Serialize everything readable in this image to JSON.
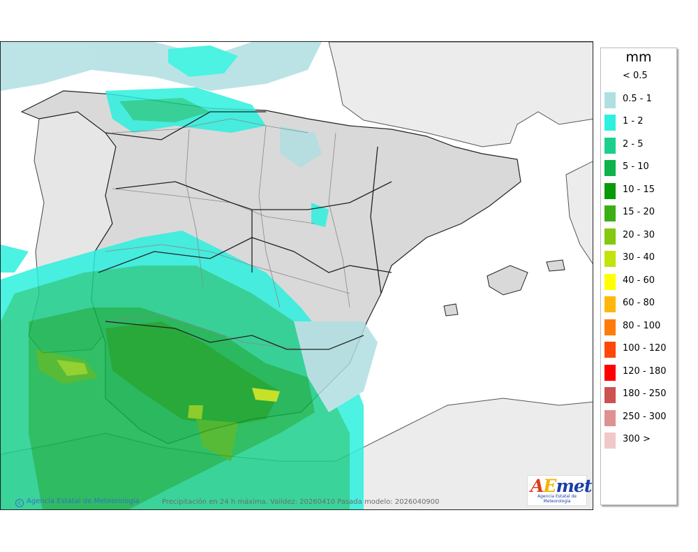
{
  "legend": {
    "unit": "mm",
    "items": [
      {
        "label": "< 0.5",
        "color": ""
      },
      {
        "label": "0.5 - 1",
        "color": "#b0dfe2"
      },
      {
        "label": "1 - 2",
        "color": "#2df0de"
      },
      {
        "label": "2 - 5",
        "color": "#1ccf8c"
      },
      {
        "label": "5 - 10",
        "color": "#0eb34a"
      },
      {
        "label": "10 - 15",
        "color": "#099a0c"
      },
      {
        "label": "15 - 20",
        "color": "#3ab016"
      },
      {
        "label": "20 - 30",
        "color": "#82c90f"
      },
      {
        "label": "30 - 40",
        "color": "#c3e30c"
      },
      {
        "label": "40 - 60",
        "color": "#ffff00"
      },
      {
        "label": "60 - 80",
        "color": "#ffb70e"
      },
      {
        "label": "80 - 100",
        "color": "#ff7c0a"
      },
      {
        "label": "100 - 120",
        "color": "#ff4706"
      },
      {
        "label": "120 - 180",
        "color": "#ff0000"
      },
      {
        "label": "180 - 250",
        "color": "#cc5252"
      },
      {
        "label": "250 - 300",
        "color": "#de9191"
      },
      {
        "label": "300 >",
        "color": "#f0c8c8"
      }
    ]
  },
  "credit": {
    "symbol": "c",
    "text": "Agencia Estatal de Meteorología"
  },
  "validity": {
    "text": "Precipitación en 24 h máxima. Validez: 20260410 Pasada modelo: 2026040900"
  },
  "logo": {
    "text": "AEMET",
    "subtitle": "Agencia Estatal de Meteorología"
  },
  "colors": {
    "sea": "#ffffff",
    "land_foreign": "#ececec",
    "land_spain": "#d9d9d9",
    "border": "#222222",
    "region_border": "#888888"
  }
}
